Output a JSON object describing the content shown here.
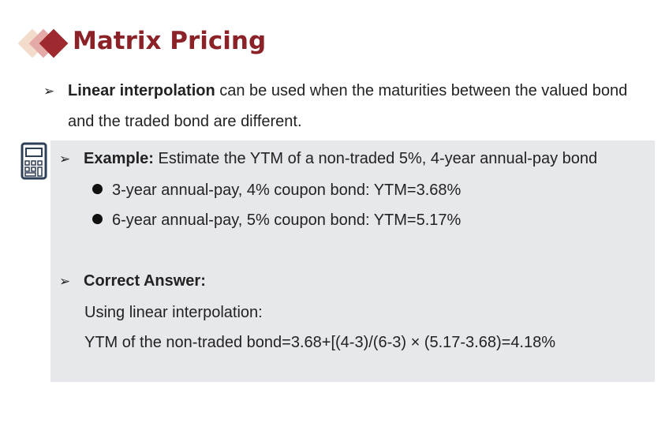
{
  "slide": {
    "title": "Matrix Pricing",
    "bullet1": {
      "bold": "Linear interpolation",
      "text": " can be used when the maturities between the valued bond and the traded bond are different."
    },
    "example": {
      "label": "Example:",
      "text": " Estimate the YTM of a non-traded  5%, 4-year annual-pay bond",
      "items": [
        "3-year annual-pay, 4% coupon bond:  YTM=3.68%",
        "6-year annual-pay, 5% coupon bond:  YTM=5.17%"
      ]
    },
    "answer": {
      "label": "Correct Answer:",
      "line1": "Using linear interpolation:",
      "line2": "YTM of the non-traded bond=3.68+[(4-3)/(6-3) × (5.17-3.68)=4.18%"
    }
  },
  "icons": [
    "diamond-logo-icon",
    "calculator-icon",
    "arrow-bullet-icon",
    "dot-bullet-icon"
  ],
  "colors": {
    "title": "#8b2228",
    "box": "#e7e8eb",
    "diamond_dark": "#9e2a2f",
    "diamond_mid": "#e3aaa8",
    "diamond_light": "#f3dccb"
  }
}
